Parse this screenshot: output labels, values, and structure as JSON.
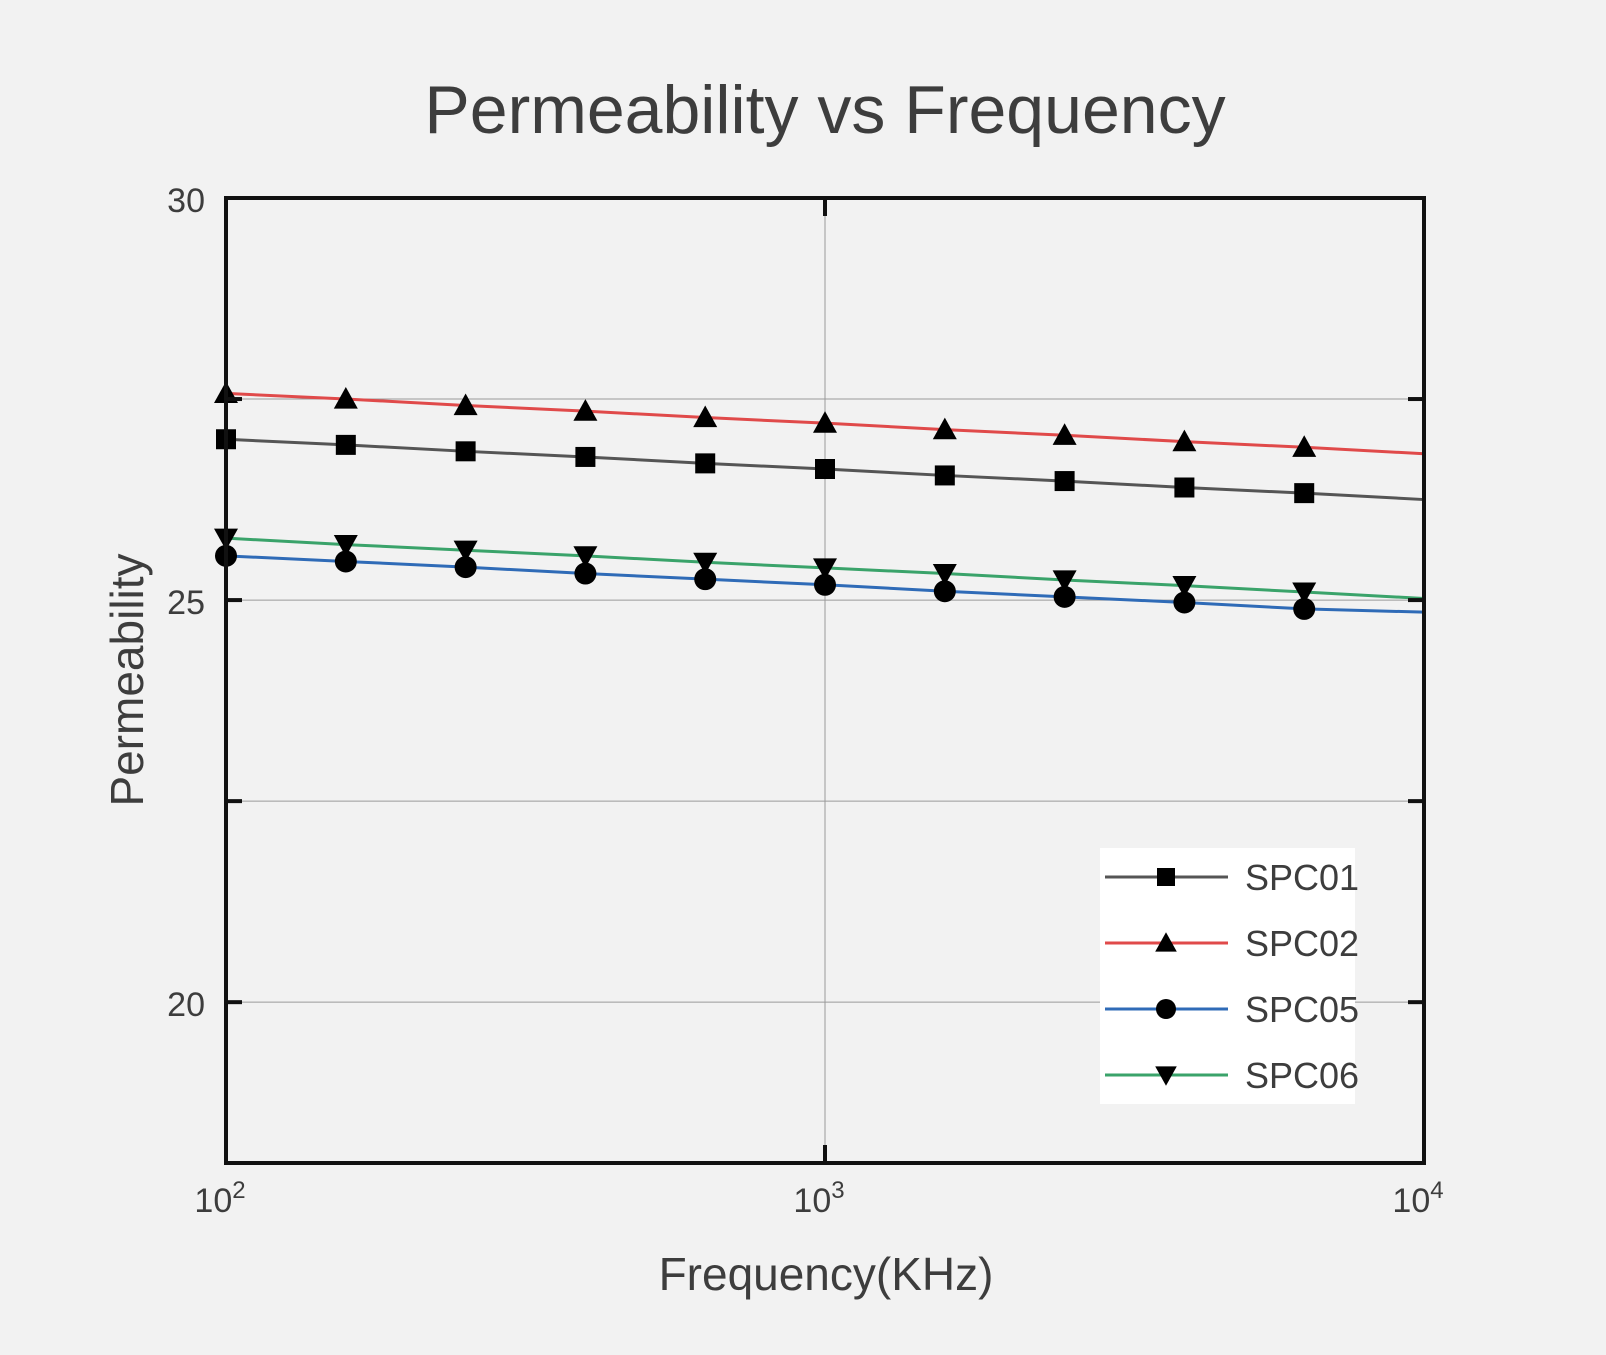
{
  "chart_data": {
    "type": "line",
    "title": "Permeability vs Frequency",
    "xlabel": "Frequency(KHz)",
    "ylabel": "Permeability",
    "x_scale": "log",
    "xlim": [
      100,
      10000
    ],
    "ylim": [
      18,
      30
    ],
    "x_ticks": [
      {
        "value": 100,
        "base": "10",
        "exp": "2"
      },
      {
        "value": 1000,
        "base": "10",
        "exp": "3"
      },
      {
        "value": 10000,
        "base": "10",
        "exp": "4"
      }
    ],
    "y_ticks": [
      {
        "value": 20,
        "label": "20"
      },
      {
        "value": 22.5,
        "label": ""
      },
      {
        "value": 25,
        "label": "25"
      },
      {
        "value": 27.5,
        "label": ""
      },
      {
        "value": 30,
        "label": "30"
      }
    ],
    "grid": true,
    "legend_position": "bottom-right",
    "x": [
      100,
      158.5,
      251.2,
      398.1,
      631,
      1000,
      1585,
      2512,
      3981,
      6310
    ],
    "series": [
      {
        "name": "SPC01",
        "color": "#555555",
        "marker": "square",
        "values": [
          27.0,
          26.93,
          26.85,
          26.78,
          26.7,
          26.63,
          26.55,
          26.48,
          26.4,
          26.33
        ],
        "line_end": [
          10000,
          26.25
        ]
      },
      {
        "name": "SPC02",
        "color": "#e04a4a",
        "marker": "triangle-up",
        "values": [
          27.57,
          27.5,
          27.42,
          27.35,
          27.27,
          27.2,
          27.12,
          27.05,
          26.97,
          26.9
        ],
        "line_end": [
          10000,
          26.82
        ]
      },
      {
        "name": "SPC05",
        "color": "#2f6bb7",
        "marker": "circle",
        "values": [
          25.55,
          25.48,
          25.41,
          25.33,
          25.26,
          25.19,
          25.11,
          25.04,
          24.97,
          24.89
        ],
        "line_end": [
          10000,
          24.85
        ]
      },
      {
        "name": "SPC06",
        "color": "#3aa36a",
        "marker": "triangle-down",
        "values": [
          25.77,
          25.69,
          25.62,
          25.55,
          25.47,
          25.4,
          25.33,
          25.25,
          25.18,
          25.1
        ],
        "line_end": [
          10000,
          25.02
        ]
      }
    ]
  }
}
